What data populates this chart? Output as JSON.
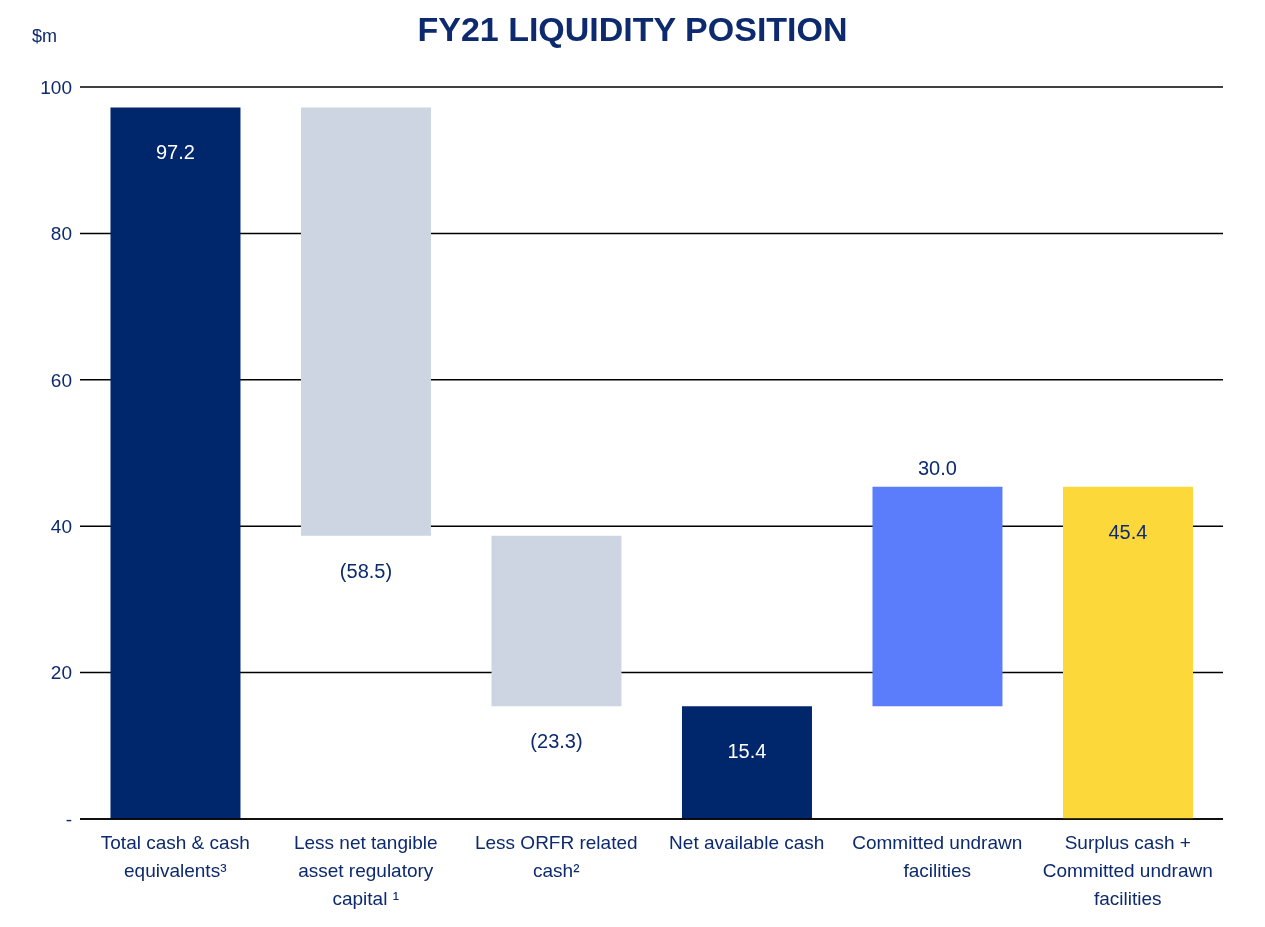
{
  "chart_data": {
    "type": "bar",
    "title": "FY21 LIQUIDITY POSITION",
    "ylabel": "$m",
    "categories": [
      "Total cash & cash equivalents³",
      "Less net tangible asset regulatory capital ¹",
      "Less ORFR related cash²",
      "Net available cash",
      "Committed undrawn facilities",
      "Surplus cash + Committed undrawn facilities"
    ],
    "values": [
      97.2,
      -58.5,
      -23.3,
      15.4,
      30.0,
      45.4
    ],
    "base": [
      0,
      97.2,
      38.7,
      0,
      15.4,
      0
    ],
    "colors": [
      "#00266b",
      "#cdd5e3",
      "#cdd5e3",
      "#00266b",
      "#5b7cfb",
      "#fdd83a"
    ],
    "value_labels": [
      "97.2",
      "(58.5)",
      "(23.3)",
      "15.4",
      "30.0",
      "45.4"
    ],
    "ylim": [
      0,
      100
    ],
    "yticks": [
      {
        "value": 0,
        "label": "-"
      },
      20,
      40,
      60,
      80,
      100
    ],
    "grid": "y",
    "legend": false
  }
}
